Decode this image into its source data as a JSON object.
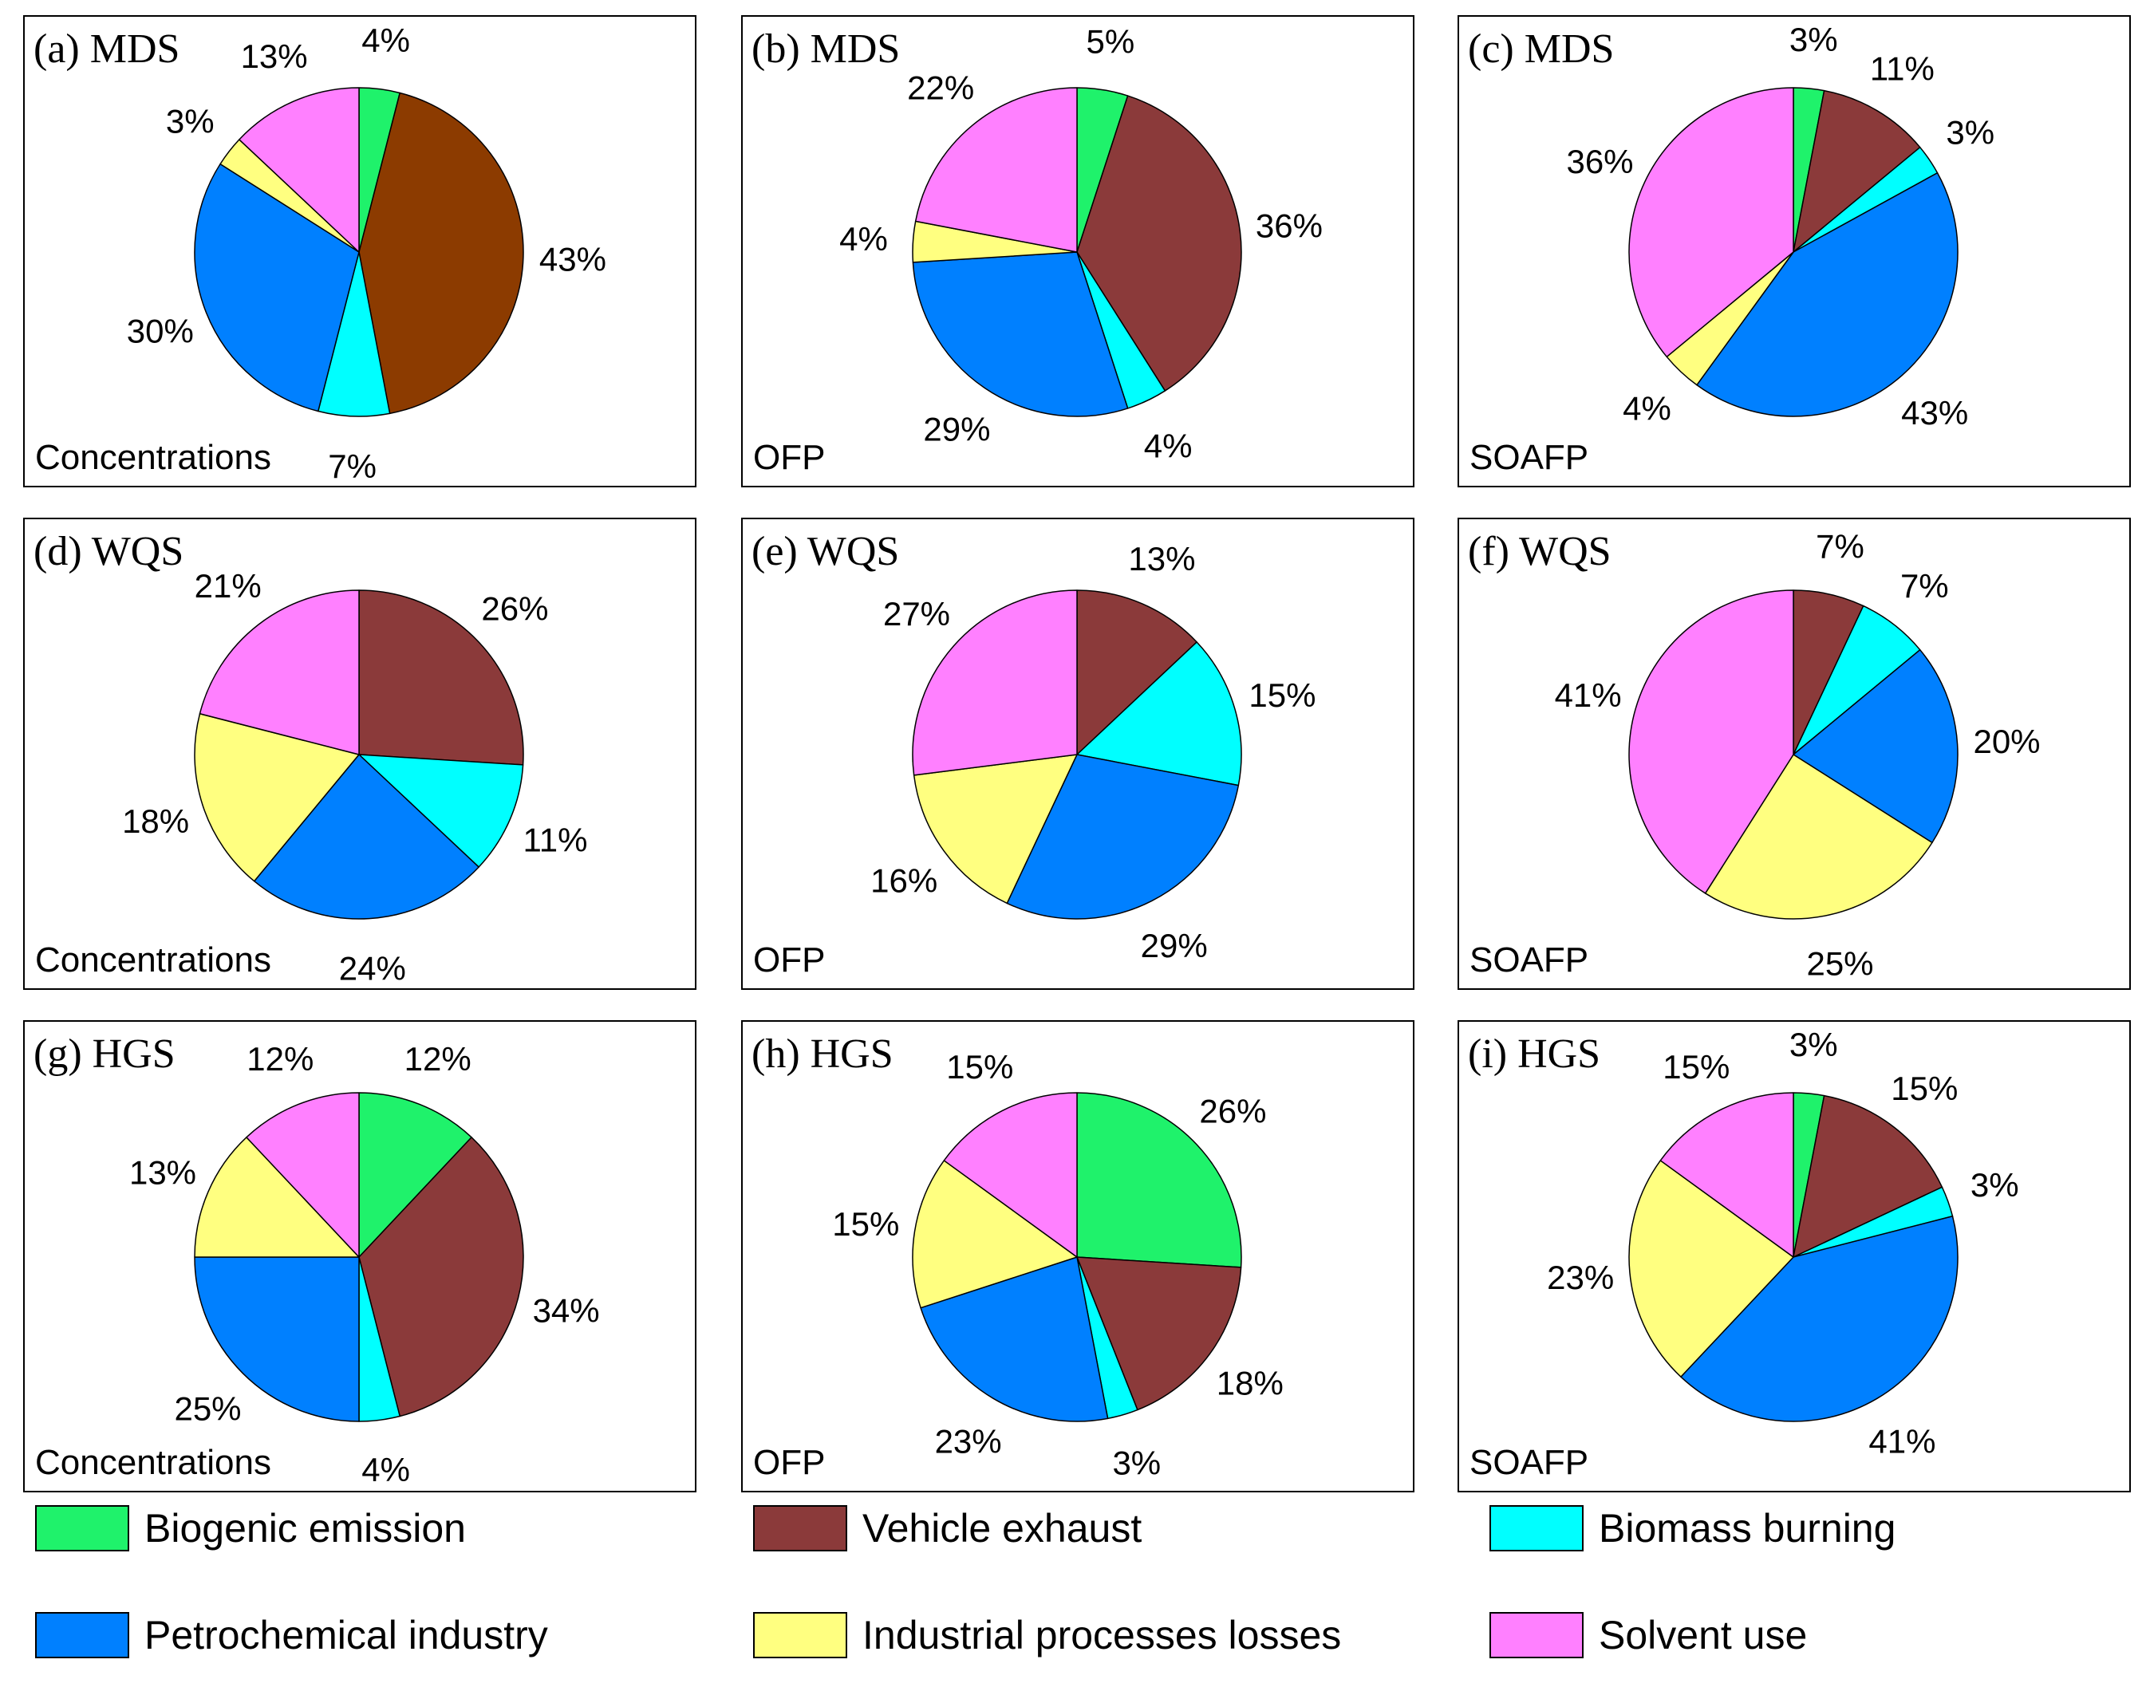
{
  "colors": {
    "Biogenic emission": "#1ff26b",
    "Vehicle exhaust": "#8b3a3a",
    "Vehicle exhaust (a)": "#8c3b00",
    "Biomass burning": "#00ffff",
    "Petrochemical industry": "#0080ff",
    "Industrial processes losses": "#ffff80",
    "Solvent use": "#ff80ff"
  },
  "legend": [
    {
      "label": "Biogenic emission",
      "color": "#1ff26b"
    },
    {
      "label": "Vehicle exhaust",
      "color": "#8b3a3a"
    },
    {
      "label": "Biomass burning",
      "color": "#00ffff"
    },
    {
      "label": "Petrochemical industry",
      "color": "#0080ff"
    },
    {
      "label": "Industrial processes losses",
      "color": "#ffff80"
    },
    {
      "label": "Solvent use",
      "color": "#ff80ff"
    }
  ],
  "chart_data": [
    {
      "type": "pie",
      "panel": "a",
      "title": "(a) MDS",
      "metric": "Concentrations",
      "slices": [
        {
          "source": "Biogenic emission",
          "value": 4,
          "label": "4%"
        },
        {
          "source": "Vehicle exhaust",
          "value": 43,
          "label": "43%",
          "color": "#8c3b00"
        },
        {
          "source": "Biomass burning",
          "value": 7,
          "label": "7%"
        },
        {
          "source": "Petrochemical industry",
          "value": 30,
          "label": "30%"
        },
        {
          "source": "Industrial processes losses",
          "value": 3,
          "label": "3%"
        },
        {
          "source": "Solvent use",
          "value": 13,
          "label": "13%"
        }
      ]
    },
    {
      "type": "pie",
      "panel": "b",
      "title": "(b) MDS",
      "metric": "OFP",
      "slices": [
        {
          "source": "Biogenic emission",
          "value": 5,
          "label": "5%"
        },
        {
          "source": "Vehicle exhaust",
          "value": 36,
          "label": "36%"
        },
        {
          "source": "Biomass burning",
          "value": 4,
          "label": "4%"
        },
        {
          "source": "Petrochemical industry",
          "value": 29,
          "label": "29%"
        },
        {
          "source": "Industrial processes losses",
          "value": 4,
          "label": "4%"
        },
        {
          "source": "Solvent use",
          "value": 22,
          "label": "22%"
        }
      ]
    },
    {
      "type": "pie",
      "panel": "c",
      "title": "(c) MDS",
      "metric": "SOAFP",
      "slices": [
        {
          "source": "Biogenic emission",
          "value": 3,
          "label": "3%"
        },
        {
          "source": "Vehicle exhaust",
          "value": 11,
          "label": "11%"
        },
        {
          "source": "Biomass burning",
          "value": 3,
          "label": "3%"
        },
        {
          "source": "Petrochemical industry",
          "value": 43,
          "label": "43%"
        },
        {
          "source": "Industrial processes losses",
          "value": 4,
          "label": "4%"
        },
        {
          "source": "Solvent use",
          "value": 36,
          "label": "36%"
        }
      ]
    },
    {
      "type": "pie",
      "panel": "d",
      "title": "(d) WQS",
      "metric": "Concentrations",
      "slices": [
        {
          "source": "Vehicle exhaust",
          "value": 26,
          "label": "26%"
        },
        {
          "source": "Biomass burning",
          "value": 11,
          "label": "11%"
        },
        {
          "source": "Petrochemical industry",
          "value": 24,
          "label": "24%"
        },
        {
          "source": "Industrial processes losses",
          "value": 18,
          "label": "18%"
        },
        {
          "source": "Solvent use",
          "value": 21,
          "label": "21%"
        }
      ]
    },
    {
      "type": "pie",
      "panel": "e",
      "title": "(e) WQS",
      "metric": "OFP",
      "slices": [
        {
          "source": "Vehicle exhaust",
          "value": 13,
          "label": "13%"
        },
        {
          "source": "Biomass burning",
          "value": 15,
          "label": "15%"
        },
        {
          "source": "Petrochemical industry",
          "value": 29,
          "label": "29%"
        },
        {
          "source": "Industrial processes losses",
          "value": 16,
          "label": "16%"
        },
        {
          "source": "Solvent use",
          "value": 27,
          "label": "27%"
        }
      ]
    },
    {
      "type": "pie",
      "panel": "f",
      "title": "(f) WQS",
      "metric": "SOAFP",
      "slices": [
        {
          "source": "Vehicle exhaust",
          "value": 7,
          "label": "7%"
        },
        {
          "source": "Biomass burning",
          "value": 7,
          "label": "7%"
        },
        {
          "source": "Petrochemical industry",
          "value": 20,
          "label": "20%"
        },
        {
          "source": "Industrial processes losses",
          "value": 25,
          "label": "25%"
        },
        {
          "source": "Solvent use",
          "value": 41,
          "label": "41%"
        }
      ]
    },
    {
      "type": "pie",
      "panel": "g",
      "title": "(g) HGS",
      "metric": "Concentrations",
      "slices": [
        {
          "source": "Biogenic emission",
          "value": 12,
          "label": "12%"
        },
        {
          "source": "Vehicle exhaust",
          "value": 34,
          "label": "34%"
        },
        {
          "source": "Biomass burning",
          "value": 4,
          "label": "4%"
        },
        {
          "source": "Petrochemical industry",
          "value": 25,
          "label": "25%"
        },
        {
          "source": "Industrial processes losses",
          "value": 13,
          "label": "13%"
        },
        {
          "source": "Solvent use",
          "value": 12,
          "label": "12%"
        }
      ]
    },
    {
      "type": "pie",
      "panel": "h",
      "title": "(h) HGS",
      "metric": "OFP",
      "slices": [
        {
          "source": "Biogenic emission",
          "value": 26,
          "label": "26%"
        },
        {
          "source": "Vehicle exhaust",
          "value": 18,
          "label": "18%"
        },
        {
          "source": "Biomass burning",
          "value": 3,
          "label": "3%"
        },
        {
          "source": "Petrochemical industry",
          "value": 23,
          "label": "23%"
        },
        {
          "source": "Industrial processes losses",
          "value": 15,
          "label": "15%"
        },
        {
          "source": "Solvent use",
          "value": 15,
          "label": "15%"
        }
      ]
    },
    {
      "type": "pie",
      "panel": "i",
      "title": "(i) HGS",
      "metric": "SOAFP",
      "slices": [
        {
          "source": "Biogenic emission",
          "value": 3,
          "label": "3%"
        },
        {
          "source": "Vehicle exhaust",
          "value": 15,
          "label": "15%"
        },
        {
          "source": "Biomass burning",
          "value": 3,
          "label": "3%"
        },
        {
          "source": "Petrochemical industry",
          "value": 41,
          "label": "41%"
        },
        {
          "source": "Industrial processes losses",
          "value": 23,
          "label": "23%"
        },
        {
          "source": "Solvent use",
          "value": 15,
          "label": "15%"
        }
      ]
    }
  ]
}
